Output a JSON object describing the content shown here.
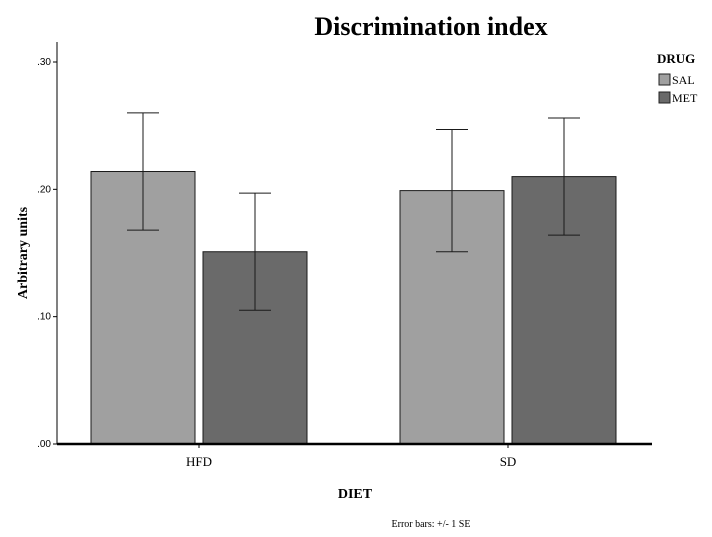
{
  "chart_data": {
    "type": "bar",
    "title": "Discrimination index",
    "xlabel": "DIET",
    "ylabel": "Arbitrary units",
    "categories": [
      "HFD",
      "SD"
    ],
    "ylim": [
      0,
      0.3
    ],
    "yticks": [
      0.0,
      0.1,
      0.2,
      0.3
    ],
    "ytick_labels": [
      ".00",
      ".10",
      ".20",
      ".30"
    ],
    "legend": {
      "title": "DRUG",
      "placement": "top-right"
    },
    "series": [
      {
        "name": "SAL",
        "color": "#a0a0a0",
        "values": [
          0.214,
          0.199
        ],
        "errors": [
          0.046,
          0.048
        ]
      },
      {
        "name": "MET",
        "color": "#6a6a6a",
        "values": [
          0.151,
          0.21
        ],
        "errors": [
          0.046,
          0.046
        ]
      }
    ],
    "footnote": "Error bars: +/- 1 SE",
    "grid": false
  }
}
